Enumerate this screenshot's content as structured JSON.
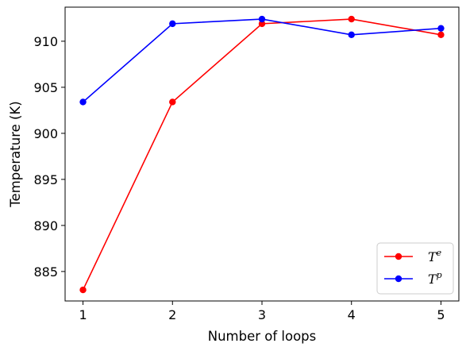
{
  "chart_data": {
    "type": "line",
    "title": "",
    "xlabel": "Number of loops",
    "ylabel": "Temperature (K)",
    "x": [
      1,
      2,
      3,
      4,
      5
    ],
    "x_ticks": [
      "1",
      "2",
      "3",
      "4",
      "5"
    ],
    "y_ticks": [
      "885",
      "890",
      "895",
      "900",
      "905",
      "910"
    ],
    "xlim": [
      0.8,
      5.2
    ],
    "ylim": [
      881.8,
      913.7
    ],
    "grid": false,
    "legend_position": "lower-right",
    "series": [
      {
        "name_base": "T",
        "name_sup": "e",
        "color": "#ff0000",
        "marker": "circle",
        "values": [
          883.0,
          903.4,
          911.9,
          912.4,
          910.7
        ]
      },
      {
        "name_base": "T",
        "name_sup": "p",
        "color": "#0000ff",
        "marker": "circle",
        "values": [
          903.4,
          911.9,
          912.4,
          910.7,
          911.4
        ]
      }
    ]
  }
}
